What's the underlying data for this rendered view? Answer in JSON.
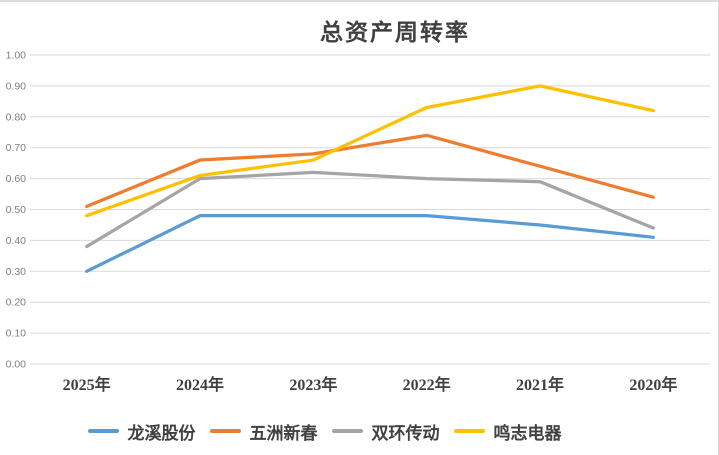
{
  "window": {
    "background": "#ffffff",
    "edge_border_color": "#dcdcdc"
  },
  "chart_data": {
    "type": "line",
    "title": "总资产周转率",
    "categories": [
      "2025年",
      "2024年",
      "2023年",
      "2022年",
      "2021年",
      "2020年"
    ],
    "series": [
      {
        "name": "龙溪股份",
        "color": "#5B9BD5",
        "values": [
          0.3,
          0.48,
          0.48,
          0.48,
          0.45,
          0.41
        ]
      },
      {
        "name": "五洲新春",
        "color": "#ED7D31",
        "values": [
          0.51,
          0.66,
          0.68,
          0.74,
          0.64,
          0.54
        ]
      },
      {
        "name": "双环传动",
        "color": "#A5A5A5",
        "values": [
          0.38,
          0.6,
          0.62,
          0.6,
          0.59,
          0.44
        ]
      },
      {
        "name": "鸣志电器",
        "color": "#FFC000",
        "values": [
          0.48,
          0.61,
          0.66,
          0.83,
          0.9,
          0.82
        ]
      }
    ],
    "ylim": [
      0.0,
      1.0
    ],
    "ytick_step": 0.1,
    "ytick_labels": [
      "0.00",
      "0.10",
      "0.20",
      "0.30",
      "0.40",
      "0.50",
      "0.60",
      "0.70",
      "0.80",
      "0.90",
      "1.00"
    ],
    "xlabel": "",
    "ylabel": "",
    "grid": true,
    "gridline_color": "#d9d9d9",
    "ytick_label_color": "#7f7f7f",
    "xtick_label_color": "#404040",
    "legend_position": "bottom"
  }
}
